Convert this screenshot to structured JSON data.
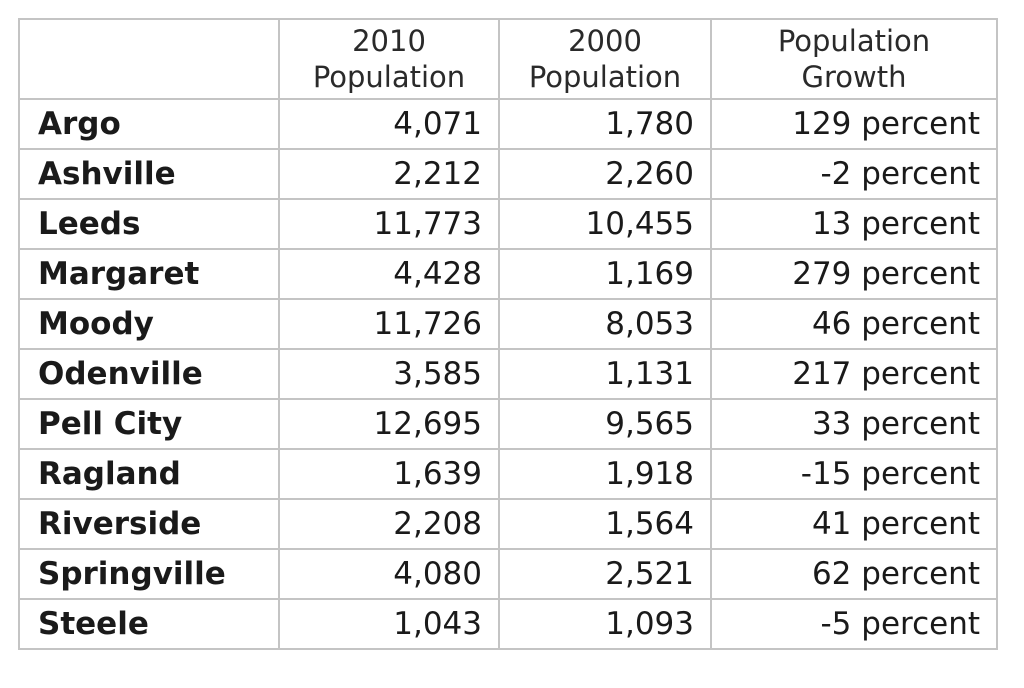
{
  "chart_data": {
    "type": "table",
    "columns": [
      {
        "line1": "",
        "line2": ""
      },
      {
        "line1": "2010",
        "line2": "Population"
      },
      {
        "line1": "2000",
        "line2": "Population"
      },
      {
        "line1": "Population",
        "line2": "Growth"
      }
    ],
    "rows": [
      {
        "name": "Argo",
        "pop2010": "4,071",
        "pop2000": "1,780",
        "growth": "129 percent"
      },
      {
        "name": "Ashville",
        "pop2010": "2,212",
        "pop2000": "2,260",
        "growth": "-2 percent"
      },
      {
        "name": "Leeds",
        "pop2010": "11,773",
        "pop2000": "10,455",
        "growth": "13 percent"
      },
      {
        "name": "Margaret",
        "pop2010": "4,428",
        "pop2000": "1,169",
        "growth": "279 percent"
      },
      {
        "name": "Moody",
        "pop2010": "11,726",
        "pop2000": "8,053",
        "growth": "46 percent"
      },
      {
        "name": "Odenville",
        "pop2010": "3,585",
        "pop2000": "1,131",
        "growth": "217 percent"
      },
      {
        "name": "Pell City",
        "pop2010": "12,695",
        "pop2000": "9,565",
        "growth": "33 percent"
      },
      {
        "name": "Ragland",
        "pop2010": "1,639",
        "pop2000": "1,918",
        "growth": "-15 percent"
      },
      {
        "name": "Riverside",
        "pop2010": "2,208",
        "pop2000": "1,564",
        "growth": "41 percent"
      },
      {
        "name": "Springville",
        "pop2010": "4,080",
        "pop2000": "2,521",
        "growth": "62 percent"
      },
      {
        "name": "Steele",
        "pop2010": "1,043",
        "pop2000": "1,093",
        "growth": "-5 percent"
      }
    ],
    "border_color": "#c4c4c4"
  }
}
